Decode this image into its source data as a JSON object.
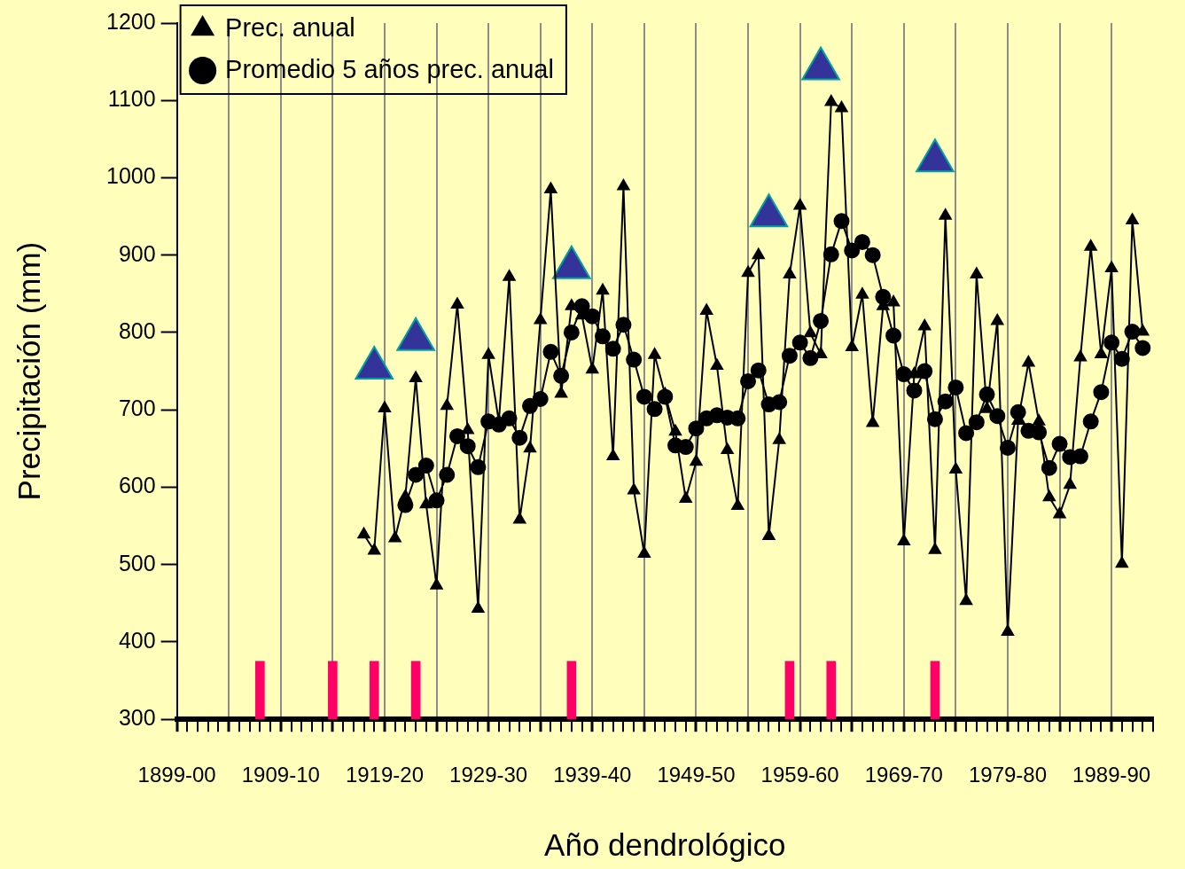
{
  "chart_data": {
    "type": "line",
    "xlabel": "Año dendrológico",
    "ylabel": "Precipitación (mm)",
    "categories": [
      "1899-00",
      null,
      null,
      null,
      null,
      null,
      null,
      null,
      null,
      null,
      "1909-10",
      null,
      null,
      null,
      null,
      null,
      null,
      null,
      null,
      null,
      "1919-20",
      null,
      null,
      null,
      null,
      null,
      null,
      null,
      null,
      null,
      "1929-30",
      null,
      null,
      null,
      null,
      null,
      null,
      null,
      null,
      null,
      "1939-40",
      null,
      null,
      null,
      null,
      null,
      null,
      null,
      null,
      null,
      "1949-50",
      null,
      null,
      null,
      null,
      null,
      null,
      null,
      null,
      null,
      "1959-60",
      null,
      null,
      null,
      null,
      null,
      null,
      null,
      null,
      null,
      "1969-70",
      null,
      null,
      null,
      null,
      null,
      null,
      null,
      null,
      null,
      "1979-80",
      null,
      null,
      null,
      null,
      null,
      null,
      null,
      null,
      null,
      "1989-90",
      null,
      null,
      null,
      null
    ],
    "ylim": [
      300,
      1200
    ],
    "yticks": [
      300,
      400,
      500,
      600,
      700,
      800,
      900,
      1000,
      1100,
      1200
    ],
    "grid": "x",
    "legend": "top left",
    "series": [
      {
        "name": "Prec. anual",
        "color": "#000000",
        "marker": "triangle",
        "values": [
          null,
          null,
          null,
          null,
          null,
          null,
          null,
          null,
          null,
          null,
          null,
          null,
          null,
          null,
          null,
          null,
          null,
          null,
          539,
          518,
          702,
          534,
          588,
          741,
          578,
          473,
          705,
          836,
          674,
          443,
          771,
          685,
          872,
          558,
          650,
          816,
          985,
          721,
          834,
          822,
          752,
          854,
          640,
          989,
          596,
          514,
          771,
          720,
          672,
          585,
          633,
          828,
          757,
          648,
          576,
          877,
          900,
          537,
          661,
          875,
          964,
          799,
          772,
          1098,
          1090,
          781,
          849,
          683,
          834,
          839,
          530,
          746,
          808,
          519,
          951,
          623,
          453,
          875,
          701,
          815,
          413,
          686,
          761,
          685,
          587,
          565,
          603,
          768,
          911,
          772,
          883,
          501,
          945,
          801,
          null
        ]
      },
      {
        "name": "Promedio 5 años prec. anual",
        "color": "#000000",
        "marker": "circle",
        "values": [
          null,
          null,
          null,
          null,
          null,
          null,
          null,
          null,
          null,
          null,
          null,
          null,
          null,
          null,
          null,
          null,
          null,
          null,
          null,
          null,
          null,
          null,
          577,
          616,
          628,
          583,
          616,
          666,
          653,
          626,
          685,
          681,
          689,
          664,
          705,
          714,
          775,
          744,
          800,
          834,
          821,
          795,
          779,
          810,
          765,
          717,
          701,
          717,
          654,
          652,
          676,
          689,
          693,
          690,
          689,
          737,
          751,
          707,
          710,
          770,
          787,
          767,
          815,
          901,
          944,
          906,
          917,
          900,
          846,
          796,
          746,
          725,
          750,
          688,
          711,
          729,
          670,
          684,
          720,
          692,
          651,
          697,
          673,
          671,
          625,
          656,
          639,
          640,
          685,
          723,
          787,
          766,
          801,
          780,
          null
        ]
      },
      {
        "type": "scatter",
        "color": "#333399",
        "marker": "triangle",
        "values": [
          null,
          null,
          null,
          null,
          null,
          null,
          null,
          null,
          null,
          null,
          null,
          null,
          null,
          null,
          null,
          null,
          null,
          null,
          null,
          754,
          null,
          null,
          null,
          791,
          null,
          null,
          null,
          null,
          null,
          null,
          null,
          null,
          null,
          null,
          null,
          null,
          null,
          null,
          884,
          null,
          null,
          null,
          null,
          null,
          null,
          null,
          null,
          null,
          null,
          null,
          null,
          null,
          null,
          null,
          null,
          null,
          null,
          951,
          null,
          null,
          null,
          null,
          1141,
          null,
          null,
          null,
          null,
          null,
          null,
          null,
          null,
          null,
          null,
          1022,
          null,
          null,
          null,
          null,
          null,
          null,
          null,
          null,
          null,
          null,
          null,
          null,
          null,
          null,
          null,
          null,
          null,
          null,
          null,
          null,
          null
        ]
      },
      {
        "type": "bar",
        "color": "#ff0066",
        "base": [
          null,
          null,
          null,
          null,
          null,
          null,
          null,
          null,
          300,
          null,
          null,
          null,
          null,
          null,
          null,
          300,
          null,
          null,
          null,
          300,
          null,
          null,
          null,
          300,
          null,
          null,
          null,
          null,
          null,
          null,
          null,
          null,
          null,
          null,
          null,
          null,
          null,
          null,
          300,
          null,
          null,
          null,
          null,
          null,
          null,
          null,
          null,
          null,
          null,
          null,
          null,
          null,
          null,
          null,
          null,
          null,
          null,
          null,
          null,
          300,
          null,
          null,
          null,
          300,
          null,
          null,
          null,
          null,
          null,
          null,
          null,
          null,
          null,
          300,
          null,
          null,
          null,
          null,
          null,
          null,
          null,
          null,
          null,
          null,
          null,
          null,
          null,
          null,
          null,
          null,
          null,
          null,
          null,
          null,
          null
        ],
        "values": [
          null,
          null,
          null,
          null,
          null,
          null,
          null,
          null,
          75,
          null,
          null,
          null,
          null,
          null,
          null,
          75,
          null,
          null,
          null,
          75,
          null,
          null,
          null,
          75,
          null,
          null,
          null,
          null,
          null,
          null,
          null,
          null,
          null,
          null,
          null,
          null,
          null,
          null,
          75,
          null,
          null,
          null,
          null,
          null,
          null,
          null,
          null,
          null,
          null,
          null,
          null,
          null,
          null,
          null,
          null,
          null,
          null,
          null,
          null,
          75,
          null,
          null,
          null,
          75,
          null,
          null,
          null,
          null,
          null,
          null,
          null,
          null,
          null,
          75,
          null,
          null,
          null,
          null,
          null,
          null,
          null,
          null,
          null,
          null,
          null,
          null,
          null,
          null,
          null,
          null,
          null,
          null,
          null,
          null,
          null
        ]
      }
    ]
  }
}
